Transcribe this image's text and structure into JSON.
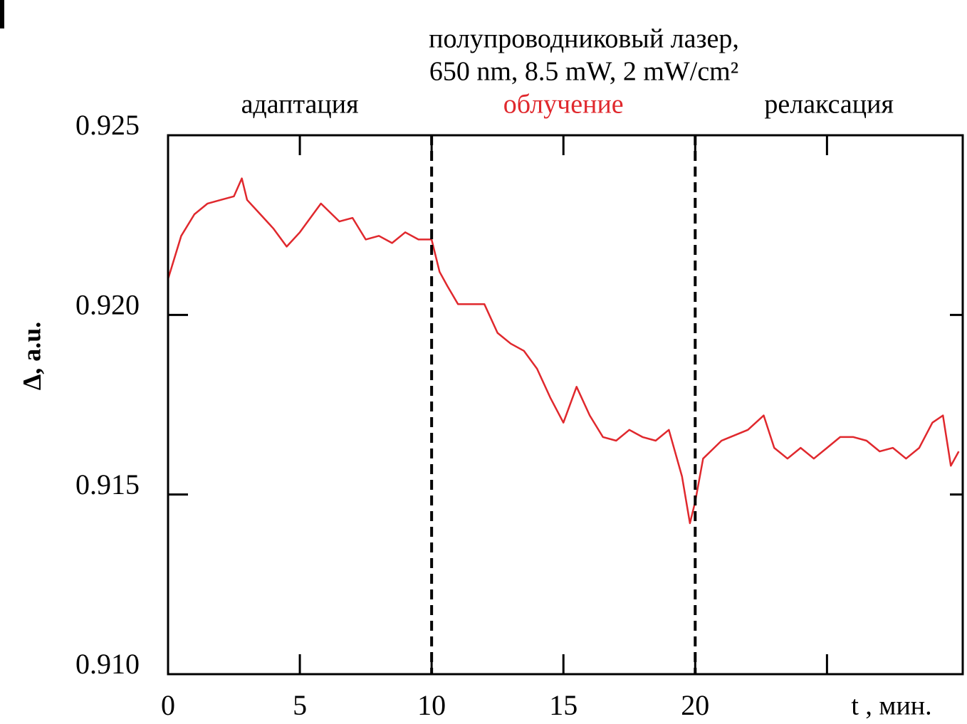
{
  "chart_data": {
    "type": "line",
    "annotation_lines": [
      "полупроводниковый лазер,",
      "650 nm,  8.5 mW, 2 mW/cm²"
    ],
    "phases": [
      {
        "name": "адаптация",
        "color": "#000000"
      },
      {
        "name": "облучение",
        "color": "#e0282d"
      },
      {
        "name": "релаксация",
        "color": "#000000"
      }
    ],
    "vlines": [
      10,
      20
    ],
    "ylabel": "Δ, a.u.",
    "xlabel": "t , мин.",
    "x": [
      0,
      0.5,
      1,
      1.5,
      2,
      2.5,
      2.8,
      3,
      3.5,
      4,
      4.5,
      5,
      5.5,
      5.8,
      6.5,
      7,
      7.5,
      8,
      8.5,
      9,
      9.5,
      10,
      10.3,
      10.6,
      11,
      11.5,
      12,
      12.5,
      13,
      13.5,
      14,
      14.5,
      15,
      15.5,
      16,
      16.5,
      17,
      17.5,
      18,
      18.5,
      19,
      19.5,
      19.8,
      20,
      20.3,
      21,
      22,
      22.6,
      23,
      23.5,
      24,
      24.5,
      25,
      25.5,
      26,
      26.5,
      27,
      27.5,
      28,
      28.5,
      29,
      29.4,
      29.7,
      30
    ],
    "series": [
      {
        "color": "#e0282d",
        "values": [
          0.921,
          0.9222,
          0.9228,
          0.9231,
          0.9232,
          0.9233,
          0.9238,
          0.9232,
          0.9228,
          0.9224,
          0.9219,
          0.9223,
          0.9228,
          0.9231,
          0.9226,
          0.9227,
          0.9221,
          0.9222,
          0.922,
          0.9223,
          0.9221,
          0.9221,
          0.9212,
          0.9208,
          0.9203,
          0.9203,
          0.9203,
          0.9195,
          0.9192,
          0.919,
          0.9185,
          0.9177,
          0.917,
          0.918,
          0.9172,
          0.9166,
          0.9165,
          0.9168,
          0.9166,
          0.9165,
          0.9168,
          0.9155,
          0.9142,
          0.9148,
          0.916,
          0.9165,
          0.9168,
          0.9172,
          0.9163,
          0.916,
          0.9163,
          0.916,
          0.9163,
          0.9166,
          0.9166,
          0.9165,
          0.9162,
          0.9163,
          0.916,
          0.9163,
          0.917,
          0.9172,
          0.9158,
          0.9162
        ]
      }
    ],
    "xlim": [
      0,
      30.15
    ],
    "ylim": [
      0.91,
      0.925
    ],
    "xticks": [
      0,
      5,
      10,
      15,
      20,
      {
        "value": 25,
        "label": null
      }
    ],
    "yticks": [
      {
        "value": 0.925,
        "label": "0.925"
      },
      {
        "value": 0.92,
        "label": "0.920"
      },
      {
        "value": 0.915,
        "label": "0.915"
      },
      {
        "value": 0.91,
        "label": "0.910"
      }
    ]
  }
}
